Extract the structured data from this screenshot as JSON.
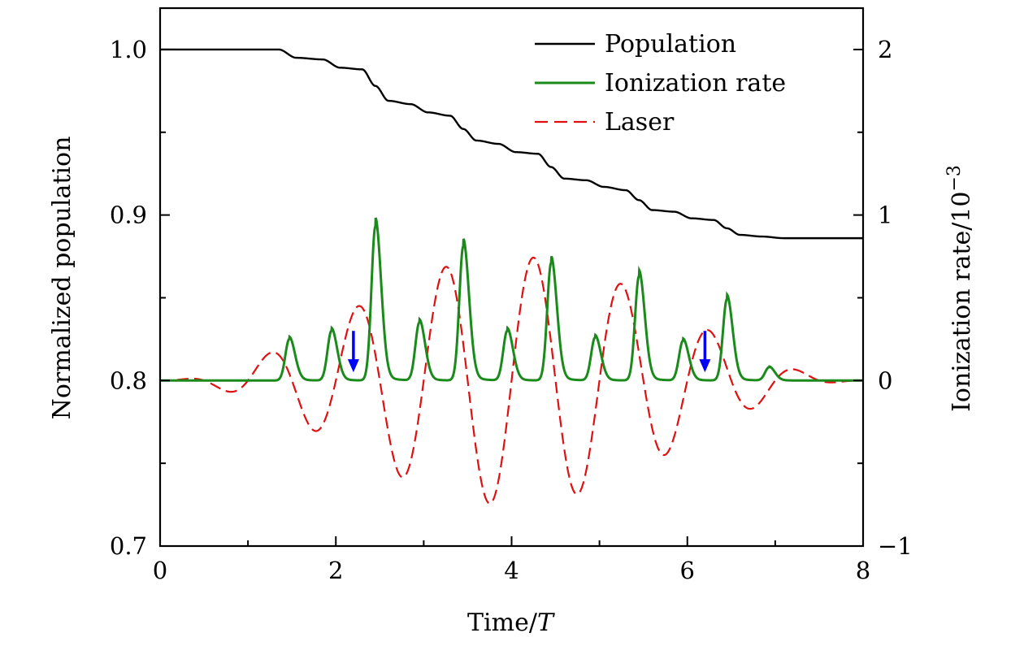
{
  "chart_data": {
    "type": "line",
    "xlabel": "Time/",
    "xlabel_italic": "T",
    "ylabel_left": "Normalized population",
    "ylabel_right": "Ionization rate/10",
    "ylabel_right_exp": "−3",
    "xlim": [
      0,
      8
    ],
    "ylim_left": [
      0.7,
      1.025
    ],
    "ylim_right": [
      -1,
      2.25
    ],
    "x_ticks": [
      "0",
      "2",
      "4",
      "6",
      "8"
    ],
    "y_left_ticks": [
      "0.7",
      "0.8",
      "0.9",
      "1.0"
    ],
    "y_right_ticks": [
      "−1",
      "0",
      "1",
      "2"
    ],
    "grid": false,
    "legend_position": "top-right",
    "series": [
      {
        "name": "Population",
        "axis": "left",
        "color": "#000000",
        "style": "solid",
        "x": [
          0,
          1.35,
          1.55,
          1.85,
          2.05,
          2.3,
          2.45,
          2.6,
          2.85,
          3.05,
          3.3,
          3.45,
          3.6,
          3.85,
          4.05,
          4.3,
          4.45,
          4.6,
          4.85,
          5.05,
          5.3,
          5.45,
          5.6,
          5.85,
          6.05,
          6.3,
          6.45,
          6.6,
          6.85,
          7.1,
          8.0
        ],
        "y": [
          1.0,
          1.0,
          0.995,
          0.994,
          0.989,
          0.988,
          0.978,
          0.969,
          0.967,
          0.962,
          0.96,
          0.952,
          0.945,
          0.943,
          0.938,
          0.937,
          0.929,
          0.922,
          0.921,
          0.917,
          0.915,
          0.909,
          0.903,
          0.902,
          0.898,
          0.897,
          0.892,
          0.888,
          0.887,
          0.886,
          0.886
        ]
      },
      {
        "name": "Ionization rate",
        "axis": "right",
        "color": "#1a8a1a",
        "style": "solid",
        "baseline": 0,
        "peaks": [
          {
            "t": 1.47,
            "h": 0.25
          },
          {
            "t": 1.95,
            "h": 0.3
          },
          {
            "t": 2.45,
            "h": 0.93
          },
          {
            "t": 2.95,
            "h": 0.35
          },
          {
            "t": 3.45,
            "h": 0.81
          },
          {
            "t": 3.95,
            "h": 0.3
          },
          {
            "t": 4.45,
            "h": 0.71
          },
          {
            "t": 4.95,
            "h": 0.26
          },
          {
            "t": 5.45,
            "h": 0.63
          },
          {
            "t": 5.95,
            "h": 0.24
          },
          {
            "t": 6.45,
            "h": 0.49
          },
          {
            "t": 6.93,
            "h": 0.08
          }
        ]
      },
      {
        "name": "Laser",
        "axis": "right",
        "color": "#e01010",
        "style": "dashed",
        "period": 1,
        "envelope": "sin^2",
        "duration": 8,
        "amplitude": 0.75,
        "phase_peak_t": 2.75
      }
    ],
    "annotations": [
      {
        "type": "arrow",
        "color": "#0000ff",
        "direction": "down",
        "x": 2.2,
        "y_right_from": 0.3,
        "y_right_to": 0.05
      },
      {
        "type": "arrow",
        "color": "#0000ff",
        "direction": "down",
        "x": 6.2,
        "y_right_from": 0.3,
        "y_right_to": 0.05
      }
    ]
  }
}
